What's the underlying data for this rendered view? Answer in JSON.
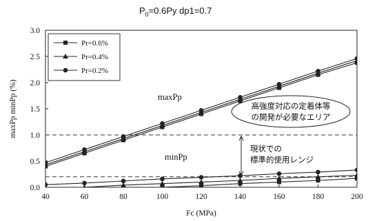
{
  "chart_data": {
    "type": "line",
    "title": "P0=0.6Py dp1=0.7",
    "title_main": "P",
    "title_sub": "0",
    "title_rest": "=0.6Py dp1=0.7",
    "xlabel": "Fc (MPa)",
    "ylabel": "maxPp minPp (%)",
    "x": [
      40,
      60,
      80,
      100,
      120,
      140,
      160,
      180,
      200
    ],
    "xlim": [
      40,
      200
    ],
    "ylim": [
      0,
      3.0
    ],
    "xticks": [
      "40",
      "60",
      "80",
      "100",
      "120",
      "140",
      "160",
      "180",
      "200"
    ],
    "yticks": [
      "0.0",
      "0.5",
      "1.0",
      "1.5",
      "2.0",
      "2.5",
      "3.0"
    ],
    "legend_position": "top-left",
    "series": [
      {
        "name": "Pr=0.6%",
        "marker": "square",
        "group": "maxPp",
        "values": [
          0.4,
          0.65,
          0.9,
          1.15,
          1.4,
          1.65,
          1.9,
          2.15,
          2.38
        ]
      },
      {
        "name": "Pr=0.4%",
        "marker": "triangle",
        "group": "maxPp",
        "values": [
          0.43,
          0.68,
          0.93,
          1.18,
          1.43,
          1.68,
          1.93,
          2.18,
          2.42
        ]
      },
      {
        "name": "Pr=0.2%",
        "marker": "circle",
        "group": "maxPp",
        "values": [
          0.47,
          0.72,
          0.97,
          1.22,
          1.47,
          1.72,
          1.97,
          2.22,
          2.46
        ]
      },
      {
        "name": "Pr=0.6%",
        "marker": "square",
        "group": "minPp",
        "values": [
          -0.1,
          -0.06,
          -0.03,
          0.0,
          0.03,
          0.07,
          0.1,
          0.13,
          0.17
        ]
      },
      {
        "name": "Pr=0.4%",
        "marker": "triangle",
        "group": "minPp",
        "values": [
          -0.03,
          0.0,
          0.04,
          0.07,
          0.1,
          0.13,
          0.17,
          0.2,
          0.23
        ]
      },
      {
        "name": "Pr=0.2%",
        "marker": "circle",
        "group": "minPp",
        "values": [
          0.05,
          0.08,
          0.12,
          0.16,
          0.19,
          0.22,
          0.26,
          0.29,
          0.33
        ]
      }
    ],
    "hlines": [
      1.0,
      0.2
    ],
    "annotations": {
      "maxPp": "maxPp",
      "minPp": "minPp",
      "upper_area": [
        "高強度対応の定着体等",
        "の開発が必要なエリア"
      ],
      "current_range": [
        "現状での",
        "標準的使用レンジ"
      ]
    }
  }
}
